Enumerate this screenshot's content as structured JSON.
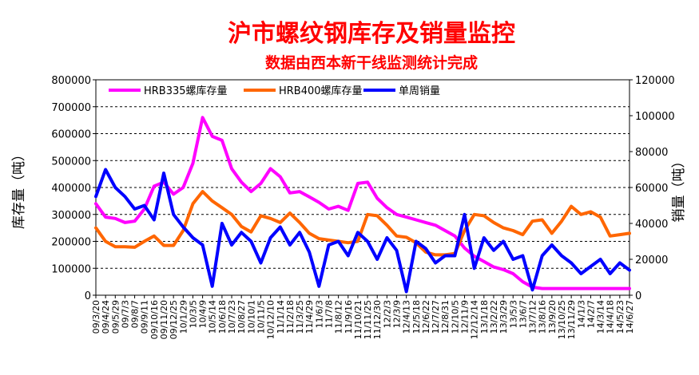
{
  "chart_data": {
    "type": "line",
    "title": "沪市螺纹钢库存及销量监控",
    "subtitle": "数据由西本新干线监测统计完成",
    "ylabel_left": "库存量（吨）",
    "ylabel_right": "销量（吨）",
    "ylim_left": [
      0,
      800000
    ],
    "ylim_right": [
      0,
      120000
    ],
    "yticks_left": [
      "0",
      "100000",
      "200000",
      "300000",
      "400000",
      "500000",
      "600000",
      "700000",
      "800000"
    ],
    "yticks_right": [
      "0",
      "20000",
      "40000",
      "60000",
      "80000",
      "100000",
      "120000"
    ],
    "grid": true,
    "legend_position": "top",
    "x_labels": [
      "09/3/20",
      "09/4/24",
      "09/5/29",
      "09/7/3",
      "09/8/7",
      "09/9/11",
      "09/10/16",
      "09/11/20",
      "09/12/25",
      "10/1/29",
      "10/3/5",
      "10/4/9",
      "10/5/14",
      "10/6/18",
      "10/7/23",
      "10/8/27",
      "10/10/1",
      "10/11/5",
      "10/12/10",
      "11/1/14",
      "11/2/18",
      "11/3/25",
      "11/4/29",
      "11/6/3",
      "11/7/8",
      "11/8/12",
      "11/9/16",
      "11/10/21",
      "11/11/25",
      "11/12/30",
      "12/2/3",
      "12/3/9",
      "12/4/13",
      "12/5/18",
      "12/6/22",
      "12/7/27",
      "12/8/31",
      "12/10/5",
      "12/11/9",
      "12/12/14",
      "13/1/18",
      "13/2/22",
      "13/3/29",
      "13/5/3",
      "13/6/7",
      "13/7/12",
      "13/8/16",
      "13/9/20",
      "13/10/25",
      "13/11/29",
      "14/1/3",
      "14/2/7",
      "14/3/14",
      "14/4/18",
      "14/5/23",
      "14/6/27"
    ],
    "series": [
      {
        "name": "HRB335螺库存量",
        "axis": "left",
        "color": "#ff00ff",
        "values": [
          340000,
          290000,
          285000,
          270000,
          275000,
          320000,
          405000,
          420000,
          375000,
          400000,
          490000,
          660000,
          590000,
          575000,
          470000,
          420000,
          385000,
          415000,
          470000,
          440000,
          380000,
          385000,
          365000,
          345000,
          320000,
          330000,
          315000,
          415000,
          420000,
          360000,
          325000,
          300000,
          290000,
          280000,
          270000,
          260000,
          240000,
          220000,
          175000,
          145000,
          125000,
          105000,
          95000,
          80000,
          50000,
          30000,
          25000,
          25000,
          25000,
          25000,
          25000,
          25000,
          25000,
          25000,
          25000,
          25000
        ]
      },
      {
        "name": "HRB400螺库存量",
        "axis": "left",
        "color": "#ff6600",
        "values": [
          250000,
          200000,
          180000,
          180000,
          178000,
          200000,
          220000,
          185000,
          185000,
          240000,
          340000,
          385000,
          350000,
          325000,
          300000,
          255000,
          235000,
          295000,
          285000,
          270000,
          305000,
          270000,
          230000,
          210000,
          205000,
          200000,
          195000,
          200000,
          300000,
          295000,
          260000,
          220000,
          215000,
          195000,
          160000,
          150000,
          150000,
          155000,
          240000,
          300000,
          295000,
          270000,
          250000,
          240000,
          225000,
          275000,
          280000,
          230000,
          275000,
          330000,
          300000,
          310000,
          290000,
          220000,
          225000,
          230000
        ]
      },
      {
        "name": "单周销量",
        "axis": "right",
        "color": "#0000ff",
        "values": [
          55000,
          70000,
          60000,
          55000,
          48000,
          50000,
          42000,
          68000,
          45000,
          38000,
          32000,
          28000,
          5000,
          40000,
          28000,
          35000,
          30000,
          18000,
          32000,
          38000,
          28000,
          35000,
          24000,
          5000,
          28000,
          30000,
          22000,
          35000,
          30000,
          20000,
          32000,
          25000,
          2000,
          30000,
          26000,
          18000,
          22000,
          22000,
          45000,
          15000,
          32000,
          25000,
          30000,
          20000,
          22000,
          3000,
          22000,
          28000,
          22000,
          18000,
          12000,
          16000,
          20000,
          12000,
          18000,
          14000
        ]
      }
    ]
  }
}
